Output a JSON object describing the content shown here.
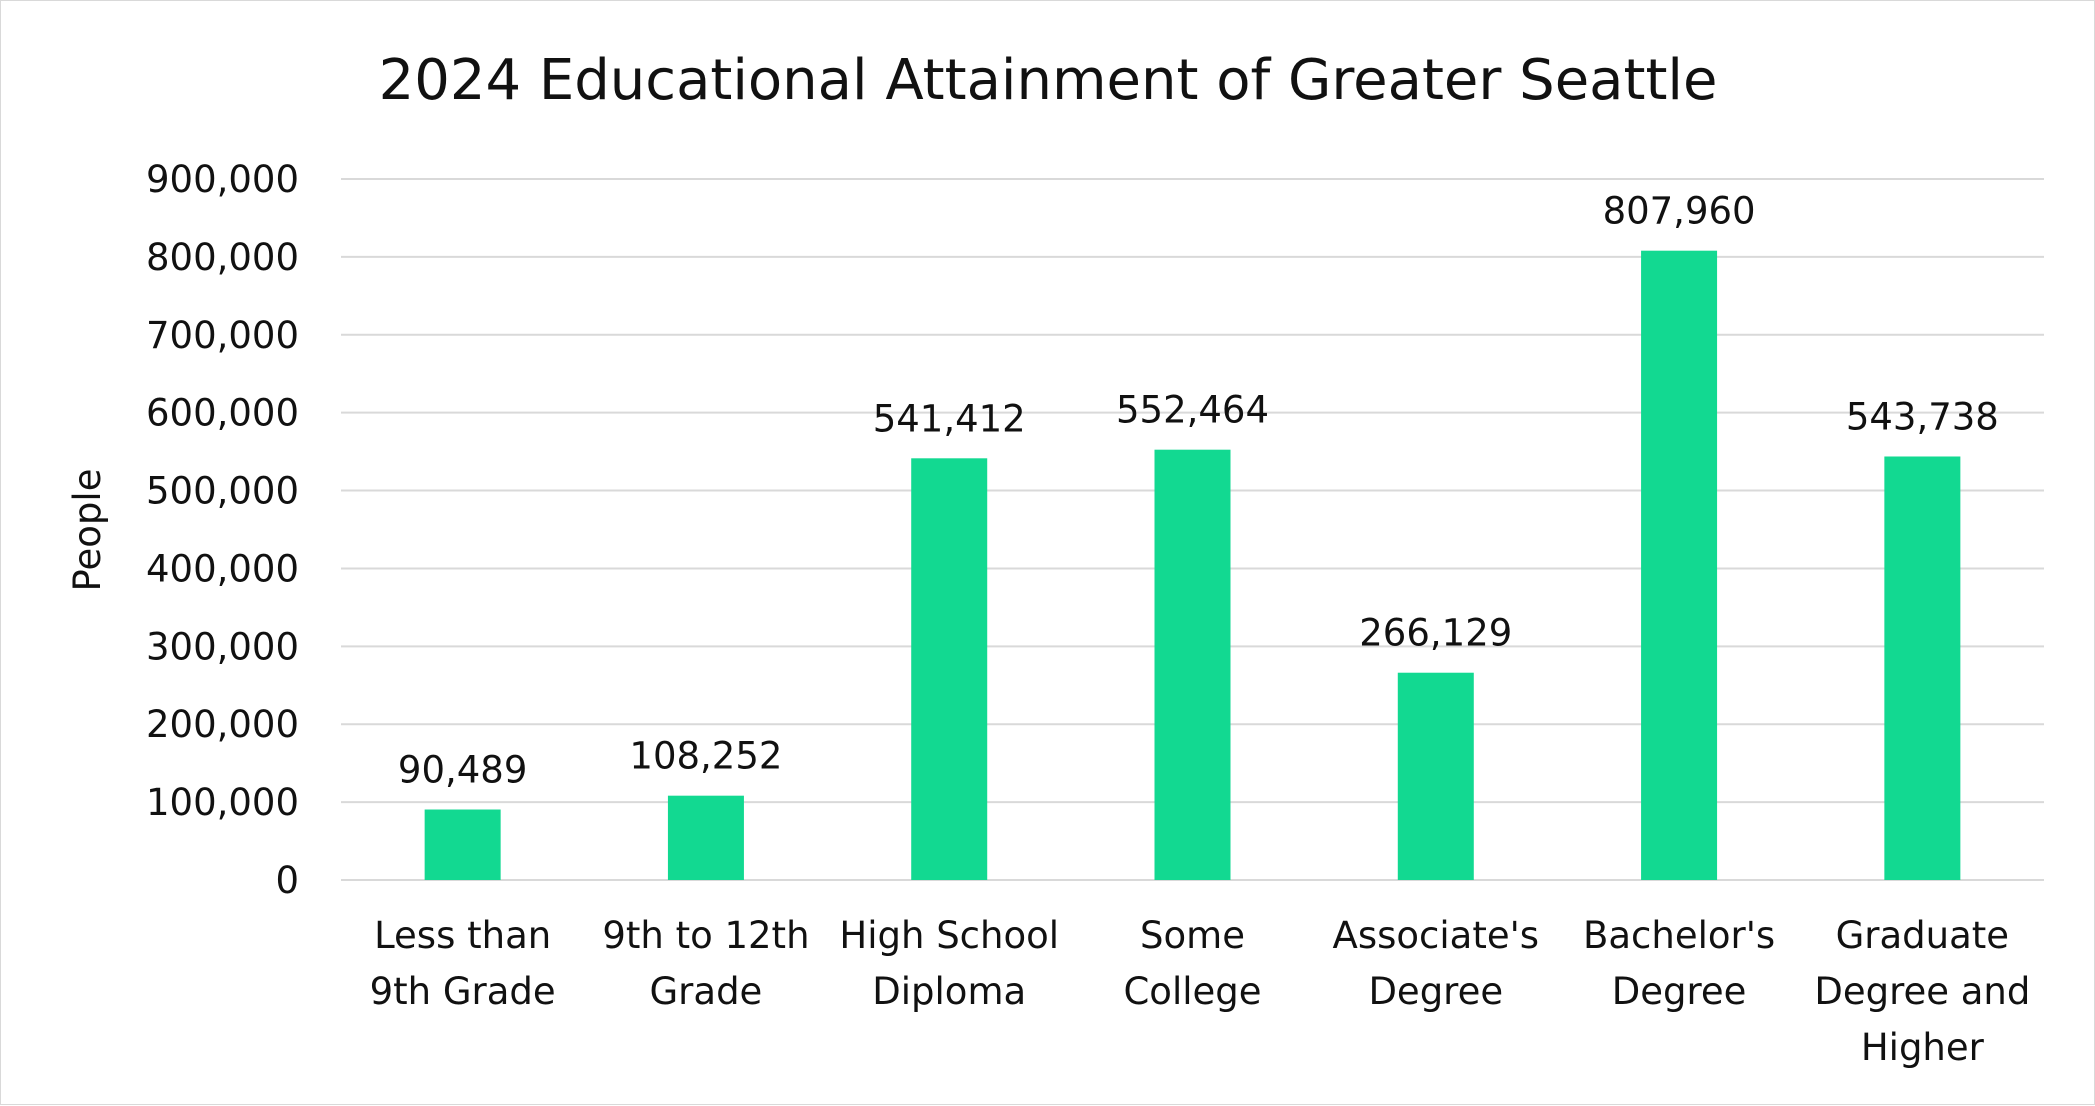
{
  "chart_data": {
    "type": "bar",
    "title": "2024 Educational Attainment of Greater Seattle",
    "xlabel": "",
    "ylabel": "People",
    "ylim": [
      0,
      900000
    ],
    "yticks": [
      0,
      100000,
      200000,
      300000,
      400000,
      500000,
      600000,
      700000,
      800000,
      900000
    ],
    "ytick_labels": [
      "0",
      "100,000",
      "200,000",
      "300,000",
      "400,000",
      "500,000",
      "600,000",
      "700,000",
      "800,000",
      "900,000"
    ],
    "categories": [
      [
        "Less than",
        "9th Grade"
      ],
      [
        "9th to 12th",
        "Grade"
      ],
      [
        "High School",
        "Diploma"
      ],
      [
        "Some",
        "College"
      ],
      [
        "Associate's",
        "Degree"
      ],
      [
        "Bachelor's",
        "Degree"
      ],
      [
        "Graduate",
        "Degree and",
        "Higher"
      ]
    ],
    "values": [
      90489,
      108252,
      541412,
      552464,
      266129,
      807960,
      543738
    ],
    "value_labels": [
      "90,489",
      "108,252",
      "541,412",
      "552,464",
      "266,129",
      "807,960",
      "543,738"
    ],
    "bar_color": "#12d991",
    "grid": true,
    "legend": "none"
  }
}
